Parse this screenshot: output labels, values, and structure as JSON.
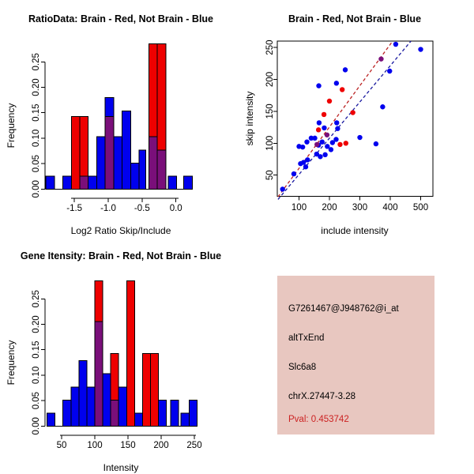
{
  "window": {
    "background": "#FFFFFF"
  },
  "colors": {
    "blue": "#0000EE",
    "red": "#EE0000",
    "overlap": "#7A0F7A",
    "line_red": "#BB2222",
    "line_blue": "#1919A0",
    "axis": "#000000"
  },
  "chart_data": [
    {
      "type": "bar",
      "variant": "overlaid-histogram",
      "title": "RatioData: Brain - Red, Not Brain - Blue",
      "xlabel": "Log2 Ratio Skip/Include",
      "ylabel": "Frequency",
      "legend_note": "Brain = red bars, Not Brain = blue bars, overlap = purple",
      "xlim": [
        -1.95,
        0.28
      ],
      "ylim": [
        0,
        0.29
      ],
      "grid": false,
      "xticks": {
        "values": [
          -1.5,
          -1.0,
          -0.5,
          0.0
        ],
        "labels": [
          "-1.5",
          "-1.0",
          "-0.5",
          "0.0"
        ]
      },
      "yticks": {
        "values": [
          0,
          0.05,
          0.1,
          0.15,
          0.2,
          0.25
        ],
        "labels": [
          "0.00",
          "0.05",
          "0.10",
          "0.15",
          "0.20",
          "0.25"
        ]
      },
      "bars": [
        {
          "x0": -1.92,
          "x1": -1.795,
          "blue": 0.0256
        },
        {
          "x0": -1.67,
          "x1": -1.545,
          "blue": 0.0256
        },
        {
          "x0": -1.545,
          "x1": -1.42,
          "red": 0.1429
        },
        {
          "x0": -1.42,
          "x1": -1.295,
          "red": 0.1429,
          "blue": 0.0256
        },
        {
          "x0": -1.295,
          "x1": -1.17,
          "blue": 0.0256
        },
        {
          "x0": -1.17,
          "x1": -1.045,
          "blue": 0.1026
        },
        {
          "x0": -1.045,
          "x1": -0.92,
          "blue": 0.1795,
          "red": 0.1429
        },
        {
          "x0": -0.92,
          "x1": -0.795,
          "blue": 0.1026
        },
        {
          "x0": -0.795,
          "x1": -0.67,
          "blue": 0.1538
        },
        {
          "x0": -0.67,
          "x1": -0.545,
          "blue": 0.0513
        },
        {
          "x0": -0.545,
          "x1": -0.445,
          "blue": 0.0769
        },
        {
          "x0": -0.4,
          "x1": -0.275,
          "red": 0.2857,
          "blue": 0.1026
        },
        {
          "x0": -0.275,
          "x1": -0.15,
          "red": 0.2857,
          "blue": 0.0769
        },
        {
          "x0": -0.115,
          "x1": 0.01,
          "blue": 0.0256
        },
        {
          "x0": 0.115,
          "x1": 0.24,
          "blue": 0.0256
        }
      ]
    },
    {
      "type": "scatter",
      "title": "Brain - Red, Not Brain - Blue",
      "xlabel": "include intensity",
      "ylabel": "skip intensity",
      "legend_note": "Brain = red points, Not Brain = blue points, overlap = purple",
      "xlim": [
        28,
        540
      ],
      "ylim": [
        12,
        261
      ],
      "grid": false,
      "xticks": {
        "values": [
          100,
          200,
          300,
          400,
          500
        ],
        "labels": [
          "100",
          "200",
          "300",
          "400",
          "500"
        ]
      },
      "yticks": {
        "values": [
          50,
          100,
          150,
          200,
          250
        ],
        "labels": [
          "50",
          "100",
          "150",
          "200",
          "250"
        ]
      },
      "lines": [
        {
          "color": "red",
          "x1": 31,
          "y1": 16,
          "x2": 408,
          "y2": 260
        },
        {
          "color": "blue",
          "x1": 31,
          "y1": 12,
          "x2": 468,
          "y2": 260
        }
      ],
      "points": [
        {
          "x": 46,
          "y": 28,
          "c": "blue"
        },
        {
          "x": 83,
          "y": 52,
          "c": "blue"
        },
        {
          "x": 105,
          "y": 68,
          "c": "blue"
        },
        {
          "x": 115,
          "y": 70,
          "c": "blue"
        },
        {
          "x": 122,
          "y": 63,
          "c": "blue"
        },
        {
          "x": 100,
          "y": 95,
          "c": "blue"
        },
        {
          "x": 112,
          "y": 94,
          "c": "blue"
        },
        {
          "x": 126,
          "y": 102,
          "c": "blue"
        },
        {
          "x": 140,
          "y": 108,
          "c": "blue"
        },
        {
          "x": 152,
          "y": 108,
          "c": "blue"
        },
        {
          "x": 128,
          "y": 74,
          "c": "blue"
        },
        {
          "x": 158,
          "y": 83,
          "c": "blue"
        },
        {
          "x": 170,
          "y": 79,
          "c": "blue"
        },
        {
          "x": 186,
          "y": 82,
          "c": "blue"
        },
        {
          "x": 205,
          "y": 90,
          "c": "blue"
        },
        {
          "x": 193,
          "y": 95,
          "c": "blue"
        },
        {
          "x": 164,
          "y": 97,
          "c": "blue"
        },
        {
          "x": 176,
          "y": 102,
          "c": "blue"
        },
        {
          "x": 210,
          "y": 101,
          "c": "blue"
        },
        {
          "x": 222,
          "y": 106,
          "c": "blue"
        },
        {
          "x": 166,
          "y": 132,
          "c": "blue"
        },
        {
          "x": 183,
          "y": 124,
          "c": "blue"
        },
        {
          "x": 224,
          "y": 132,
          "c": "blue"
        },
        {
          "x": 227,
          "y": 123,
          "c": "blue"
        },
        {
          "x": 165,
          "y": 190,
          "c": "blue"
        },
        {
          "x": 223,
          "y": 194,
          "c": "blue"
        },
        {
          "x": 252,
          "y": 215,
          "c": "blue"
        },
        {
          "x": 300,
          "y": 109,
          "c": "blue"
        },
        {
          "x": 353,
          "y": 99,
          "c": "blue"
        },
        {
          "x": 375,
          "y": 157,
          "c": "blue"
        },
        {
          "x": 398,
          "y": 213,
          "c": "blue"
        },
        {
          "x": 418,
          "y": 255,
          "c": "blue"
        },
        {
          "x": 500,
          "y": 247,
          "c": "blue"
        },
        {
          "x": 164,
          "y": 121,
          "c": "red"
        },
        {
          "x": 182,
          "y": 145,
          "c": "red"
        },
        {
          "x": 200,
          "y": 166,
          "c": "red"
        },
        {
          "x": 242,
          "y": 184,
          "c": "red"
        },
        {
          "x": 235,
          "y": 98,
          "c": "red"
        },
        {
          "x": 254,
          "y": 100,
          "c": "red"
        },
        {
          "x": 277,
          "y": 148,
          "c": "red"
        },
        {
          "x": 159,
          "y": 98,
          "c": "overlap"
        },
        {
          "x": 192,
          "y": 113,
          "c": "overlap"
        },
        {
          "x": 370,
          "y": 232,
          "c": "overlap"
        }
      ]
    },
    {
      "type": "bar",
      "variant": "overlaid-histogram",
      "title": "Gene Itensity: Brain - Red, Not Brain - Blue",
      "xlabel": "Intensity",
      "ylabel": "Frequency",
      "legend_note": "Brain = red bars, Not Brain = blue bars, overlap = purple",
      "xlim": [
        25,
        255
      ],
      "ylim": [
        0,
        0.29
      ],
      "grid": false,
      "xticks": {
        "values": [
          50,
          100,
          150,
          200,
          250
        ],
        "labels": [
          "50",
          "100",
          "150",
          "200",
          "250"
        ]
      },
      "yticks": {
        "values": [
          0,
          0.05,
          0.1,
          0.15,
          0.2,
          0.25
        ],
        "labels": [
          "0.00",
          "0.05",
          "0.10",
          "0.15",
          "0.20",
          "0.25"
        ]
      },
      "bars": [
        {
          "x0": 28,
          "x1": 40,
          "blue": 0.0256
        },
        {
          "x0": 52,
          "x1": 64,
          "blue": 0.0513
        },
        {
          "x0": 64,
          "x1": 76,
          "blue": 0.0769
        },
        {
          "x0": 76,
          "x1": 88,
          "blue": 0.1282
        },
        {
          "x0": 88,
          "x1": 100,
          "blue": 0.0769
        },
        {
          "x0": 100,
          "x1": 112,
          "blue": 0.2051,
          "red": 0.2857
        },
        {
          "x0": 112,
          "x1": 124,
          "blue": 0.1026
        },
        {
          "x0": 124,
          "x1": 136,
          "red": 0.1429,
          "blue": 0.0513
        },
        {
          "x0": 136,
          "x1": 148,
          "blue": 0.0769
        },
        {
          "x0": 148,
          "x1": 160,
          "red": 0.2857
        },
        {
          "x0": 160,
          "x1": 172,
          "blue": 0.0256
        },
        {
          "x0": 172,
          "x1": 184,
          "red": 0.1429
        },
        {
          "x0": 184,
          "x1": 196,
          "red": 0.1429
        },
        {
          "x0": 196,
          "x1": 208,
          "blue": 0.0513
        },
        {
          "x0": 214,
          "x1": 226,
          "blue": 0.0513
        },
        {
          "x0": 230,
          "x1": 242,
          "blue": 0.0256
        },
        {
          "x0": 242,
          "x1": 254,
          "blue": 0.0513
        }
      ]
    }
  ],
  "info_panel": {
    "bg": "#E8C7C0",
    "lines": [
      {
        "text": "G7261467@J948762@i_at",
        "color": "#000000"
      },
      {
        "text": "altTxEnd",
        "color": "#000000"
      },
      {
        "text": "Slc6a8",
        "color": "#000000"
      },
      {
        "text": "chrX.27447-3.28",
        "color": "#000000"
      },
      {
        "text": "Pval: 0.453742",
        "color": "#CC2222"
      }
    ]
  }
}
